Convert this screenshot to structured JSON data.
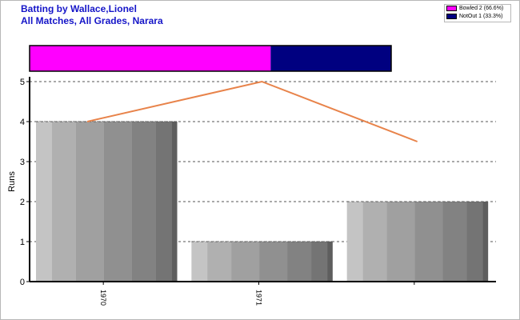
{
  "title_lines": [
    "Batting by Wallace,Lionel",
    "All Matches, All Grades, Narara"
  ],
  "legend": [
    {
      "label": "Bowled 2 (66.6%)",
      "color": "#ff00ff"
    },
    {
      "label": "NotOut 1 (33.3%)",
      "color": "#000080"
    }
  ],
  "chart_data": {
    "type": "bar",
    "title": "Batting by Wallace,Lionel",
    "subtitle": "All Matches, All Grades, Narara",
    "ylabel": "Runs",
    "xlabel": "",
    "categories": [
      "1970",
      "1971",
      ""
    ],
    "values": [
      4,
      1,
      2
    ],
    "line_values": [
      4,
      5,
      3.5
    ],
    "ylim": [
      0,
      5
    ],
    "yticks": [
      0,
      1,
      2,
      3,
      4,
      5
    ],
    "grid": true,
    "dismissals": [
      {
        "name": "Bowled",
        "count": 2,
        "percent": 66.6,
        "color": "#ff00ff"
      },
      {
        "name": "NotOut",
        "count": 1,
        "percent": 33.3,
        "color": "#000080"
      }
    ],
    "line_color": "#e8834a",
    "grid_color": "#555555"
  }
}
